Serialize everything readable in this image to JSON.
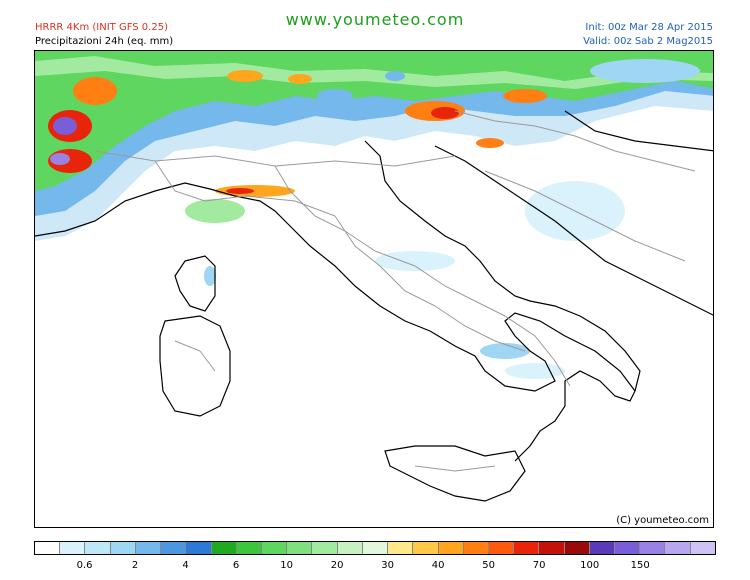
{
  "header": {
    "model_title": "HRRR 4Km (INIT GFS 0.25)",
    "product_title": "Precipitazioni 24h (eq. mm)",
    "website": "www.youmeteo.com",
    "init_line": "Init: 00z Mar 28 Apr 2015",
    "valid_line": "Valid: 00z Sab 2 Mag2015"
  },
  "map": {
    "copyright": "(C) youmeteo.com",
    "colors": {
      "sea": "#ffffff",
      "coast": "#000000",
      "borders": "#9a9a9a",
      "light_blue": "#cfe8f7",
      "mid_blue": "#6fb4ea",
      "green": "#3ccf3c",
      "light_green": "#9be89b",
      "orange": "#f58a1a",
      "red": "#e0301e",
      "purple": "#7a5ed8"
    }
  },
  "legend": {
    "colors": [
      "#ffffff",
      "#d9f2fb",
      "#bde8f7",
      "#9fd6f3",
      "#74b8ec",
      "#4b97e0",
      "#2c7ad6",
      "#1faa1f",
      "#3cc63c",
      "#5fd65f",
      "#7ee07e",
      "#a2ea9f",
      "#c6f2c0",
      "#e2f8da",
      "#ffe88a",
      "#ffc846",
      "#ffa51e",
      "#ff7f12",
      "#ff5a0c",
      "#e8250a",
      "#c4120a",
      "#9b0a0a",
      "#5a3ab8",
      "#7a5ed8",
      "#9a82e4",
      "#b8a6ee",
      "#cfc2f4"
    ],
    "ticks": [
      "0.6",
      "2",
      "4",
      "6",
      "10",
      "20",
      "30",
      "40",
      "50",
      "70",
      "100",
      "150"
    ]
  }
}
